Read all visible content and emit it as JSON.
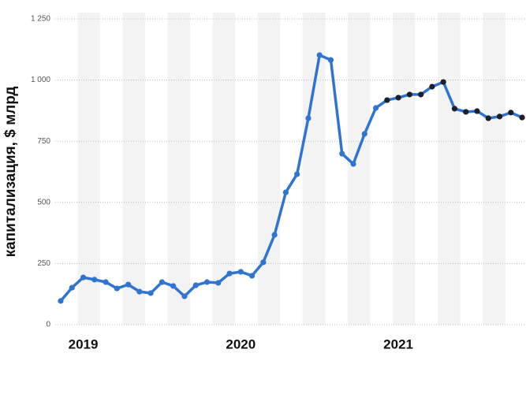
{
  "chart_data": {
    "type": "line",
    "y_label": "капитализация, $ млрд",
    "categories": [
      null,
      null,
      "2019",
      null,
      null,
      null,
      null,
      null,
      null,
      null,
      null,
      null,
      null,
      null,
      null,
      null,
      "2020",
      null,
      null,
      null,
      null,
      null,
      null,
      null,
      null,
      null,
      null,
      null,
      null,
      null,
      "2021",
      null,
      null,
      null,
      null,
      null,
      null,
      null,
      null,
      null,
      null,
      null
    ],
    "series": [
      {
        "color": "#2f74d0",
        "values": [
          97,
          151,
          193,
          184,
          174,
          148,
          164,
          135,
          129,
          174,
          158,
          116,
          161,
          174,
          171,
          209,
          216,
          200,
          255,
          367,
          541,
          615,
          844,
          1102,
          1082,
          699,
          657,
          780,
          886,
          918,
          928,
          941,
          941,
          973,
          992,
          883,
          870,
          873,
          844,
          851,
          867,
          847
        ],
        "marker_colors": [
          "#2f74d0",
          "#2f74d0",
          "#2f74d0",
          "#2f74d0",
          "#2f74d0",
          "#2f74d0",
          "#2f74d0",
          "#2f74d0",
          "#2f74d0",
          "#2f74d0",
          "#2f74d0",
          "#2f74d0",
          "#2f74d0",
          "#2f74d0",
          "#2f74d0",
          "#2f74d0",
          "#2f74d0",
          "#2f74d0",
          "#2f74d0",
          "#2f74d0",
          "#2f74d0",
          "#2f74d0",
          "#2f74d0",
          "#2f74d0",
          "#2f74d0",
          "#2f74d0",
          "#2f74d0",
          "#2f74d0",
          "#2f74d0",
          "#1a1f2b",
          "#1a1f2b",
          "#1a1f2b",
          "#1a1f2b",
          "#1a1f2b",
          "#1a1f2b",
          "#1a1f2b",
          "#1a1f2b",
          "#1a1f2b",
          "#1a1f2b",
          "#1a1f2b",
          "#1a1f2b",
          "#1a1f2b"
        ]
      }
    ],
    "ylim": [
      0,
      1250
    ],
    "yticks": [
      0,
      250,
      500,
      750,
      {
        "value": 1000,
        "label": "1 000"
      },
      {
        "value": 1250,
        "label": "1 250"
      }
    ],
    "grid": true
  }
}
